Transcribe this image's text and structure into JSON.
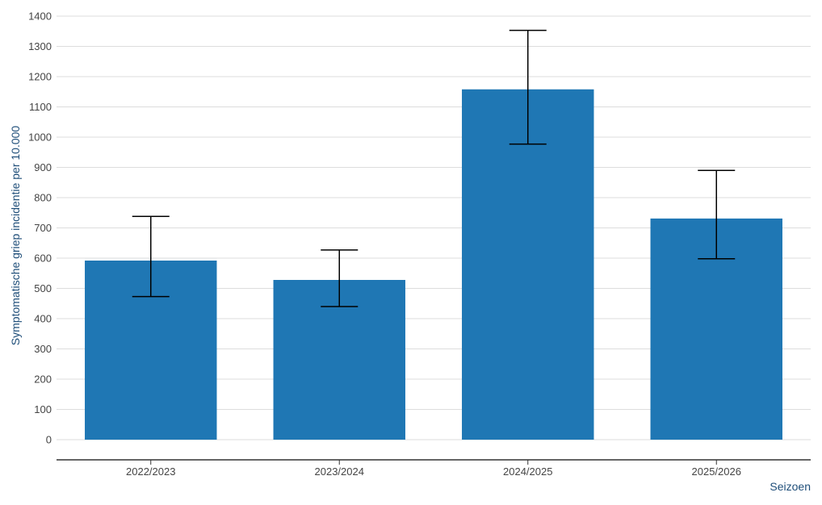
{
  "chart_data": {
    "type": "bar",
    "title": "",
    "xlabel": "Seizoen",
    "ylabel": "Symptomatische griep incidentie per 10.000",
    "categories": [
      "2022/2023",
      "2023/2024",
      "2024/2025",
      "2025/2026"
    ],
    "values": [
      592,
      528,
      1158,
      731
    ],
    "error_lower": [
      473,
      440,
      977,
      598
    ],
    "error_upper": [
      738,
      627,
      1353,
      890
    ],
    "ylim": [
      0,
      1400
    ],
    "yticks": [
      0,
      100,
      200,
      300,
      400,
      500,
      600,
      700,
      800,
      900,
      1000,
      1100,
      1200,
      1300,
      1400
    ],
    "grid": true,
    "bar_color": "#1f77b4",
    "error_bar_color": "#000000",
    "grid_color": "#dddddd",
    "axis_color": "#333333",
    "label_color": "#1f4e79"
  }
}
